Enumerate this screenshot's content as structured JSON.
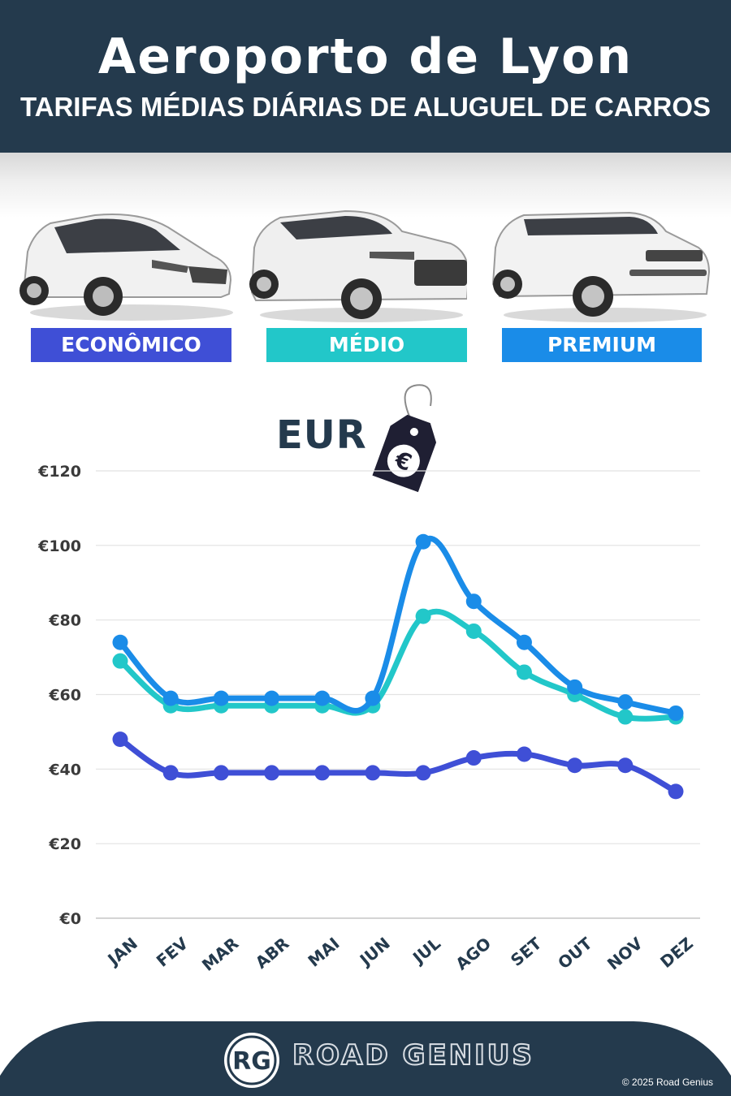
{
  "header": {
    "title": "Aeroporto de Lyon",
    "subtitle": "TARIFAS MÉDIAS DIÁRIAS DE ALUGUEL DE CARROS"
  },
  "categories": [
    {
      "label": "ECONÔMICO",
      "color": "#3f4fd6"
    },
    {
      "label": "MÉDIO",
      "color": "#22c7c9"
    },
    {
      "label": "PREMIUM",
      "color": "#1a8ce8"
    }
  ],
  "currency": {
    "label": "EUR",
    "tag_symbol": "€",
    "tag_icon": "price-tag-icon"
  },
  "chart_data": {
    "type": "line",
    "categories": [
      "JAN",
      "FEV",
      "MAR",
      "ABR",
      "MAI",
      "JUN",
      "JUL",
      "AGO",
      "SET",
      "OUT",
      "NOV",
      "DEZ"
    ],
    "series": [
      {
        "name": "ECONÔMICO",
        "color": "#3f4fd6",
        "values": [
          48,
          39,
          39,
          39,
          39,
          39,
          39,
          43,
          44,
          41,
          41,
          34
        ]
      },
      {
        "name": "MÉDIO",
        "color": "#22c7c9",
        "values": [
          69,
          57,
          57,
          57,
          57,
          57,
          81,
          77,
          66,
          60,
          54,
          54
        ]
      },
      {
        "name": "PREMIUM",
        "color": "#1a8ce8",
        "values": [
          74,
          59,
          59,
          59,
          59,
          59,
          101,
          85,
          74,
          62,
          58,
          55
        ]
      }
    ],
    "yticks": [
      "€0",
      "€20",
      "€40",
      "€60",
      "€80",
      "€100",
      "€120"
    ],
    "ylim": [
      0,
      120
    ],
    "grid": true
  },
  "footer": {
    "brand": "ROAD GENIUS",
    "logo_text": "RG",
    "copyright": "© 2025 Road Genius",
    "background": "#243a4d"
  }
}
